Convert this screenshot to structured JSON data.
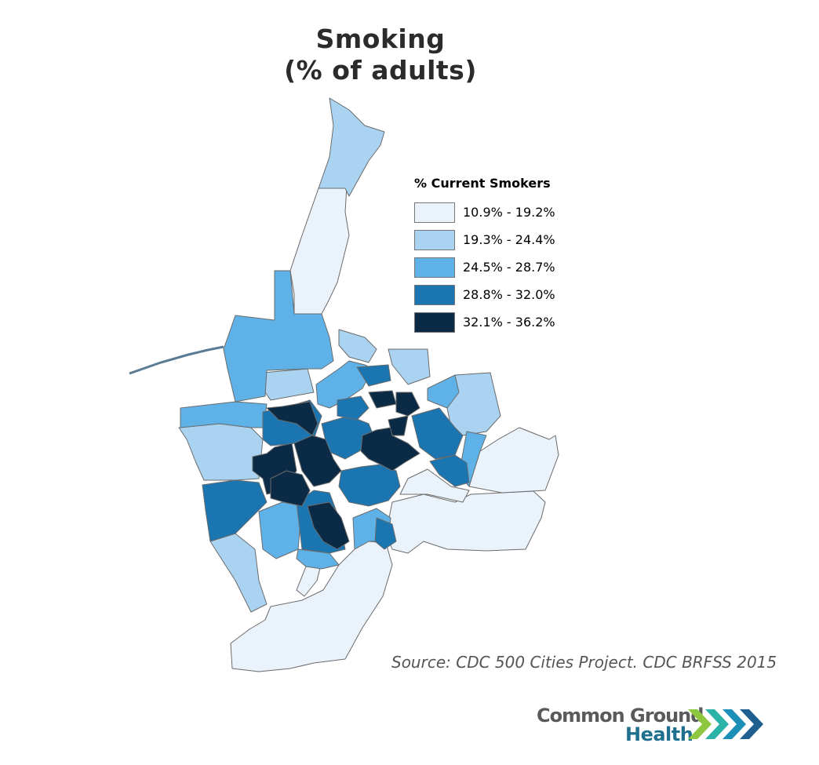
{
  "title": {
    "line1": "Smoking",
    "line2": "(% of adults)"
  },
  "legend": {
    "title": "% Current Smokers",
    "items": [
      {
        "label": "10.9% - 19.2%",
        "color": "#eaf3fb"
      },
      {
        "label": "19.3% - 24.4%",
        "color": "#a9d3f1"
      },
      {
        "label": "24.5% - 28.7%",
        "color": "#5fb2e8"
      },
      {
        "label": "28.8% - 32.0%",
        "color": "#1a75b0"
      },
      {
        "label": "32.1% - 36.2%",
        "color": "#0a2a45"
      }
    ]
  },
  "source": "Source: CDC 500 Cities Project. CDC BRFSS 2015",
  "logo": {
    "line1": "Common Ground",
    "line2": "Health",
    "chevron_colors": [
      "#8dc63f",
      "#2bb3a8",
      "#1b8fb8",
      "#1f5f8f"
    ]
  },
  "map": {
    "outline_color": "#6b6b6b",
    "river_color": "#5a7b94",
    "classes": {
      "c1": "#eaf3fb",
      "c2": "#a9d3f1",
      "c3": "#5fb2e8",
      "c4": "#1a75b0",
      "c5": "#0a2a45"
    }
  }
}
